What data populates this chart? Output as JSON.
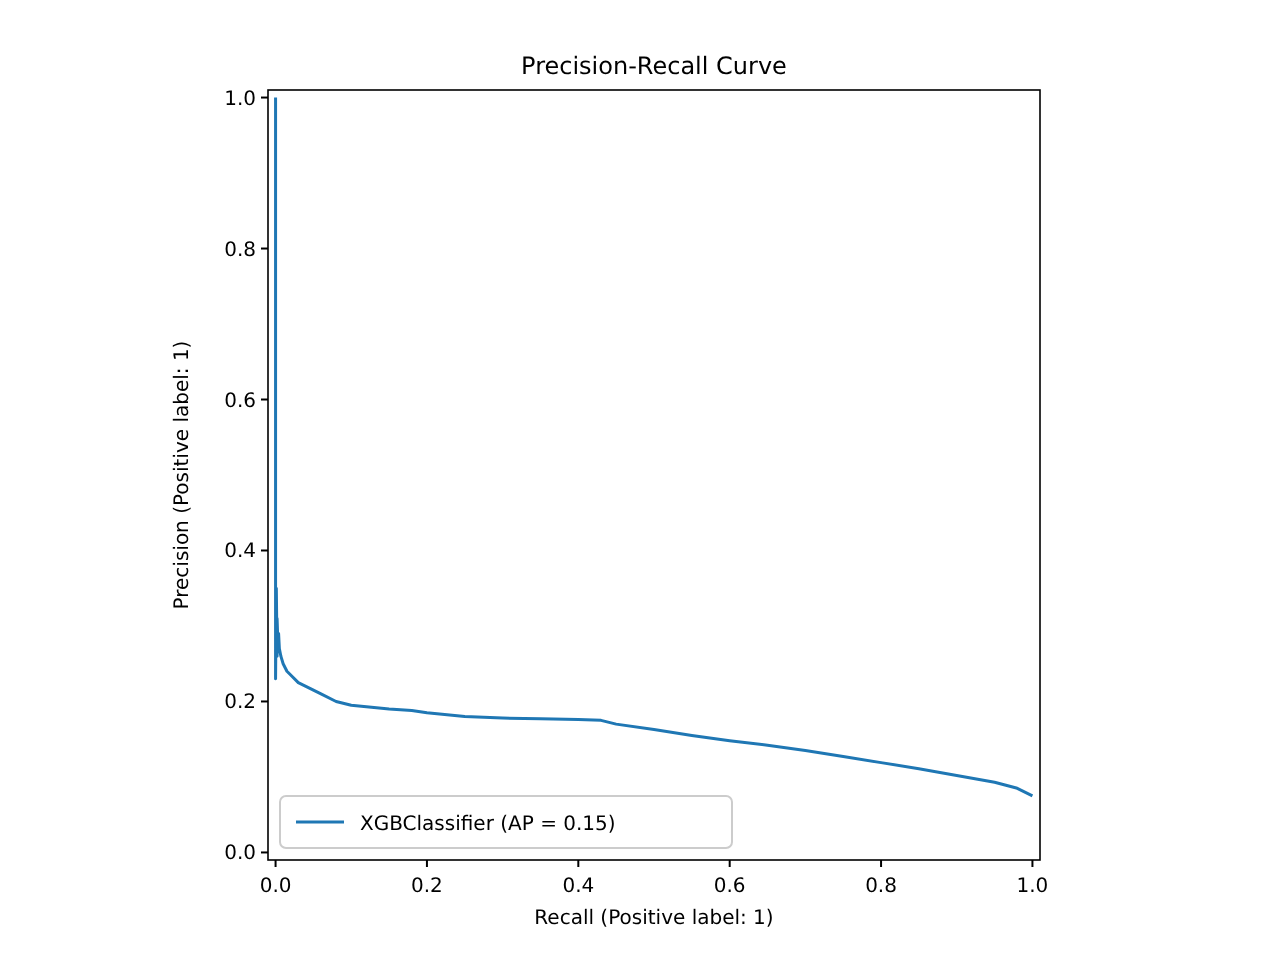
{
  "chart_data": {
    "type": "line",
    "title": "Precision-Recall Curve",
    "xlabel": "Recall (Positive label: 1)",
    "ylabel": "Precision (Positive label: 1)",
    "xlim": [
      -0.01,
      1.01
    ],
    "ylim": [
      -0.01,
      1.01
    ],
    "xticks": [
      {
        "value": 0,
        "label": "0.0"
      },
      0.2,
      0.4,
      0.6,
      0.8,
      {
        "value": 1,
        "label": "1.0"
      }
    ],
    "yticks": [
      {
        "value": 0,
        "label": "0.0"
      },
      0.2,
      0.4,
      0.6,
      0.8,
      {
        "value": 1,
        "label": "1.0"
      }
    ],
    "grid": false,
    "legend": "bottom left",
    "series": [
      {
        "name": "XGBClassifier (AP = 0.15)",
        "color": "#1f77b4",
        "x": [
          0,
          0,
          0,
          0.001,
          0.002,
          0.002,
          0.003,
          0.004,
          0.005,
          0.007,
          0.01,
          0.015,
          0.02,
          0.03,
          0.04,
          0.05,
          0.06,
          0.08,
          0.1,
          0.12,
          0.15,
          0.18,
          0.2,
          0.25,
          0.3,
          0.35,
          0.4,
          0.43,
          0.45,
          0.5,
          0.55,
          0.6,
          0.65,
          0.7,
          0.75,
          0.8,
          0.85,
          0.9,
          0.95,
          0.98,
          1
        ],
        "values": [
          1,
          0.5,
          0.23,
          0.35,
          0.26,
          0.31,
          0.28,
          0.29,
          0.27,
          0.26,
          0.25,
          0.24,
          0.235,
          0.225,
          0.22,
          0.215,
          0.21,
          0.2,
          0.195,
          0.193,
          0.19,
          0.188,
          0.185,
          0.18,
          0.178,
          0.177,
          0.176,
          0.175,
          0.17,
          0.163,
          0.155,
          0.148,
          0.142,
          0.135,
          0.127,
          0.119,
          0.111,
          0.102,
          0.093,
          0.085,
          0.075
        ]
      }
    ]
  }
}
